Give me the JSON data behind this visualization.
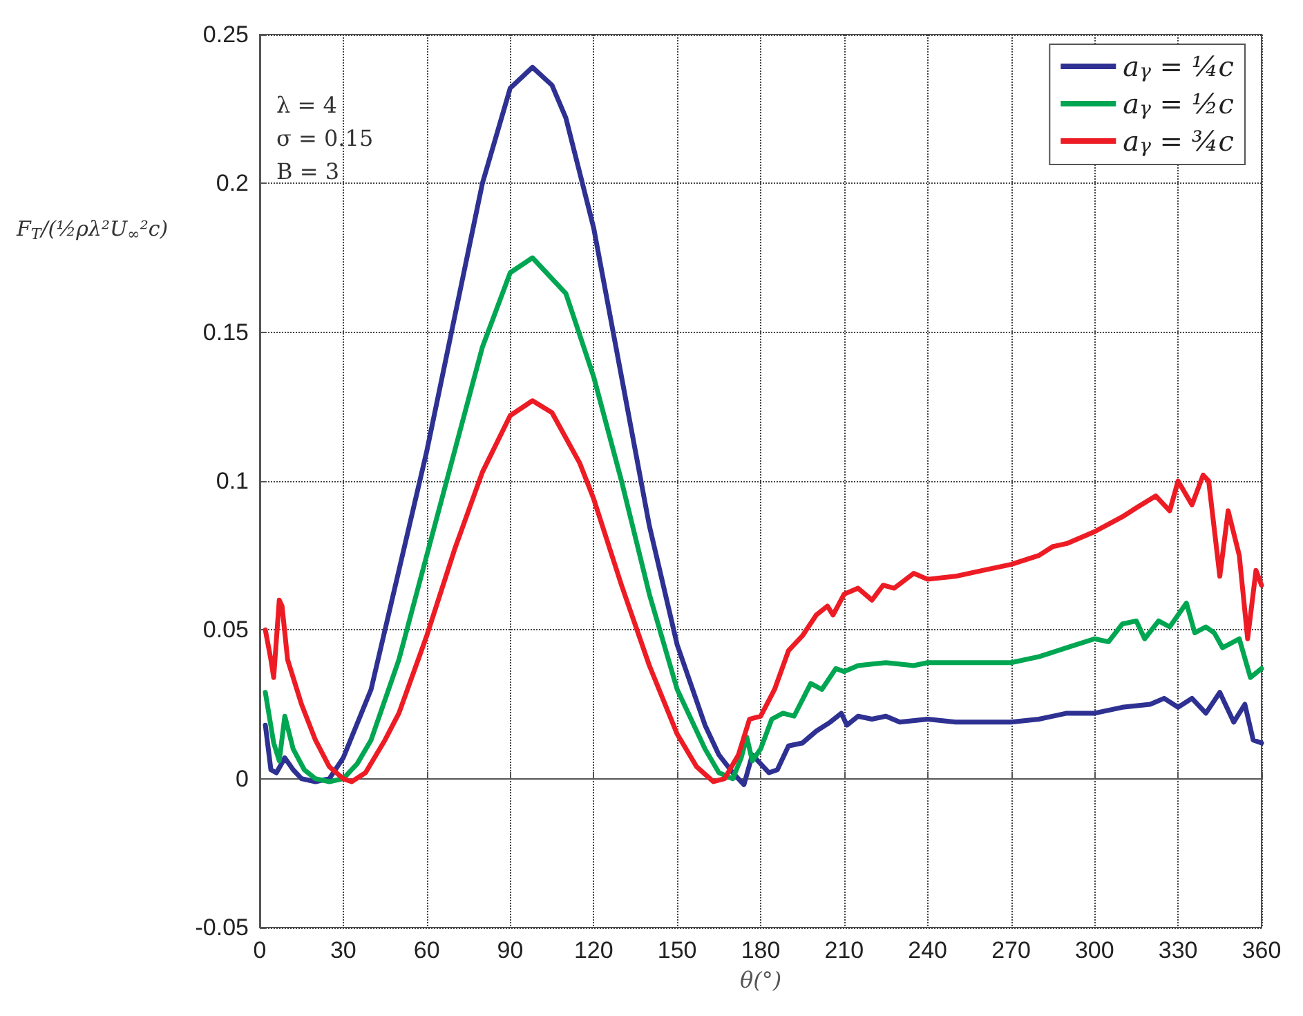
{
  "chart_data": {
    "type": "line",
    "xlabel": "θ(°)",
    "ylabel": "F$_{T}$/(½ρλ²U$_{∞}$²c)",
    "annotations": [
      "λ = 4",
      "σ = 0.15",
      "B = 3"
    ],
    "xlim": [
      0,
      360
    ],
    "xticks": [
      0,
      30,
      60,
      90,
      120,
      150,
      180,
      210,
      240,
      270,
      300,
      330,
      360
    ],
    "ylim": [
      -0.05,
      0.25
    ],
    "yticks": [
      -0.05,
      0,
      0.05,
      0.1,
      0.15,
      0.2,
      0.25
    ],
    "grid": true,
    "legend": "top right",
    "line_style": "solid",
    "marker": "none",
    "series": [
      {
        "name": "a$_{γ}$ = ¼c",
        "color": "#2e3192",
        "x": [
          2,
          4,
          6,
          9,
          12,
          15,
          20,
          25,
          30,
          40,
          50,
          60,
          70,
          80,
          90,
          98,
          105,
          110,
          120,
          130,
          140,
          150,
          160,
          165,
          170,
          174,
          177,
          180,
          183,
          186,
          190,
          195,
          200,
          205,
          209,
          211,
          215,
          220,
          225,
          230,
          240,
          250,
          260,
          270,
          280,
          290,
          300,
          310,
          320,
          325,
          330,
          335,
          340,
          345,
          350,
          354,
          357,
          360
        ],
        "values": [
          0.018,
          0.003,
          0.002,
          0.007,
          0.003,
          0.0,
          -0.001,
          0.0,
          0.007,
          0.03,
          0.07,
          0.11,
          0.155,
          0.2,
          0.232,
          0.239,
          0.233,
          0.222,
          0.185,
          0.135,
          0.085,
          0.045,
          0.018,
          0.008,
          0.002,
          -0.002,
          0.008,
          0.005,
          0.002,
          0.003,
          0.011,
          0.012,
          0.016,
          0.019,
          0.022,
          0.018,
          0.021,
          0.02,
          0.021,
          0.019,
          0.02,
          0.019,
          0.019,
          0.019,
          0.02,
          0.022,
          0.022,
          0.024,
          0.025,
          0.027,
          0.024,
          0.027,
          0.022,
          0.029,
          0.019,
          0.025,
          0.013,
          0.012
        ]
      },
      {
        "name": "a$_{γ}$ = ½c",
        "color": "#00a651",
        "x": [
          2,
          5,
          7,
          9,
          12,
          16,
          20,
          25,
          30,
          35,
          40,
          50,
          60,
          70,
          80,
          90,
          98,
          110,
          120,
          130,
          140,
          150,
          160,
          165,
          170,
          173,
          175,
          177,
          180,
          184,
          188,
          192,
          198,
          202,
          207,
          210,
          215,
          225,
          235,
          240,
          250,
          260,
          270,
          280,
          290,
          300,
          305,
          310,
          315,
          318,
          323,
          327,
          333,
          336,
          340,
          343,
          346,
          352,
          356,
          360
        ],
        "values": [
          0.029,
          0.012,
          0.006,
          0.021,
          0.01,
          0.003,
          0.0,
          -0.001,
          0.0,
          0.005,
          0.013,
          0.04,
          0.075,
          0.11,
          0.145,
          0.17,
          0.175,
          0.163,
          0.135,
          0.1,
          0.062,
          0.03,
          0.01,
          0.002,
          0.0,
          0.007,
          0.014,
          0.006,
          0.01,
          0.02,
          0.022,
          0.021,
          0.032,
          0.03,
          0.037,
          0.036,
          0.038,
          0.039,
          0.038,
          0.039,
          0.039,
          0.039,
          0.039,
          0.041,
          0.044,
          0.047,
          0.046,
          0.052,
          0.053,
          0.047,
          0.053,
          0.051,
          0.059,
          0.049,
          0.051,
          0.049,
          0.044,
          0.047,
          0.034,
          0.037
        ]
      },
      {
        "name": "a$_{γ}$ = ¾c",
        "color": "#ed1c24",
        "x": [
          2,
          4,
          5,
          7,
          8,
          10,
          15,
          20,
          25,
          30,
          33,
          38,
          45,
          50,
          60,
          70,
          80,
          90,
          98,
          105,
          115,
          120,
          130,
          140,
          150,
          157,
          163,
          167,
          172,
          176,
          180,
          185,
          190,
          195,
          200,
          204,
          206,
          210,
          215,
          220,
          224,
          228,
          235,
          240,
          250,
          260,
          270,
          280,
          285,
          290,
          300,
          310,
          315,
          322,
          327,
          330,
          335,
          339,
          341,
          345,
          348,
          352,
          355,
          358,
          360
        ],
        "values": [
          0.05,
          0.04,
          0.034,
          0.06,
          0.058,
          0.04,
          0.025,
          0.013,
          0.004,
          0.0,
          -0.001,
          0.002,
          0.013,
          0.022,
          0.048,
          0.077,
          0.103,
          0.122,
          0.127,
          0.123,
          0.106,
          0.094,
          0.065,
          0.038,
          0.015,
          0.004,
          -0.001,
          0.0,
          0.008,
          0.02,
          0.021,
          0.03,
          0.043,
          0.048,
          0.055,
          0.058,
          0.055,
          0.062,
          0.064,
          0.06,
          0.065,
          0.064,
          0.069,
          0.067,
          0.068,
          0.07,
          0.072,
          0.075,
          0.078,
          0.079,
          0.083,
          0.088,
          0.091,
          0.095,
          0.09,
          0.1,
          0.092,
          0.102,
          0.1,
          0.068,
          0.09,
          0.075,
          0.047,
          0.07,
          0.065
        ]
      }
    ]
  }
}
